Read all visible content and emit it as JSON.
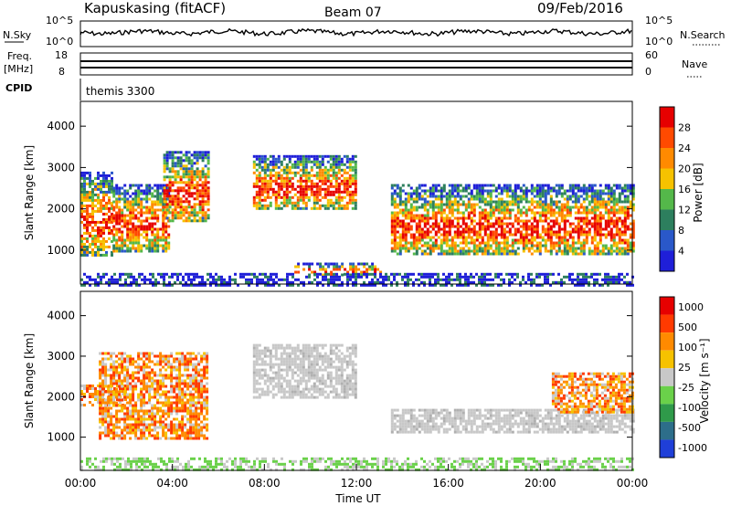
{
  "header": {
    "station": "Kapuskasing (fitACF)",
    "beam": "Beam 07",
    "date": "09/Feb/2016"
  },
  "noise_panel": {
    "left_label": "N.Sky",
    "right_label": "N.Search",
    "left_ticks": [
      "10^5",
      "10^0"
    ],
    "right_ticks": [
      "10^5",
      "10^0"
    ]
  },
  "freq_panel": {
    "left_label_1": "Freq.",
    "left_label_2": "[MHz]",
    "right_label": "Nave",
    "left_ticks": [
      "18",
      "8"
    ],
    "right_ticks": [
      "60",
      "0"
    ]
  },
  "cpid": {
    "label": "CPID",
    "program": "themis 3300"
  },
  "xaxis": {
    "title": "Time UT",
    "ticks": [
      "00:00",
      "04:00",
      "08:00",
      "12:00",
      "16:00",
      "20:00",
      "00:00"
    ]
  },
  "chart_data": [
    {
      "type": "heatmap",
      "panel": "power",
      "ylabel": "Slant Range [km]",
      "xlabel": "Time UT",
      "ylim": [
        180,
        4600
      ],
      "yticks": [
        1000,
        2000,
        3000,
        4000
      ],
      "colorbar_label": "Power [dB]",
      "colorbar_ticks": [
        4,
        8,
        12,
        16,
        20,
        24,
        28
      ],
      "colors": [
        "#1f1fd8",
        "#2a58c9",
        "#2d7f5e",
        "#54b84a",
        "#f6c200",
        "#ff8a00",
        "#ff4a00",
        "#e60000"
      ],
      "echo_regions": [
        {
          "t_start": 0.0,
          "t_end": 1.4,
          "r_min": 900,
          "r_max": 2900
        },
        {
          "t_start": 1.4,
          "t_end": 3.8,
          "r_min": 1000,
          "r_max": 2600
        },
        {
          "t_start": 3.6,
          "t_end": 5.6,
          "r_min": 1700,
          "r_max": 3400
        },
        {
          "t_start": 7.5,
          "t_end": 12.0,
          "r_min": 2000,
          "r_max": 3300
        },
        {
          "t_start": 9.3,
          "t_end": 13.0,
          "r_min": 400,
          "r_max": 700
        },
        {
          "t_start": 13.5,
          "t_end": 24.0,
          "r_min": 900,
          "r_max": 2600
        },
        {
          "t_start": 0.0,
          "t_end": 24.0,
          "r_min": 180,
          "r_max": 450
        }
      ]
    },
    {
      "type": "heatmap",
      "panel": "velocity",
      "ylabel": "Slant Range [km]",
      "xlabel": "Time UT",
      "ylim": [
        180,
        4600
      ],
      "yticks": [
        1000,
        2000,
        3000,
        4000
      ],
      "colorbar_label": "Velocity [m s⁻¹]",
      "colorbar_ticks": [
        1000,
        500,
        100,
        25,
        -25,
        -100,
        -500,
        -1000
      ],
      "colors": [
        "#1f3fd8",
        "#2d6e8a",
        "#2f9a4a",
        "#6ad14a",
        "#c8c8c8",
        "#f6c200",
        "#ff8a00",
        "#ff3a00",
        "#e60000"
      ],
      "echo_regions": [
        {
          "t_start": 0.0,
          "t_end": 2.0,
          "r_min": 1800,
          "r_max": 2300
        },
        {
          "t_start": 0.8,
          "t_end": 5.5,
          "r_min": 1000,
          "r_max": 3100
        },
        {
          "t_start": 7.5,
          "t_end": 12.0,
          "r_min": 2000,
          "r_max": 3300
        },
        {
          "t_start": 13.5,
          "t_end": 24.0,
          "r_min": 1100,
          "r_max": 1700
        },
        {
          "t_start": 20.5,
          "t_end": 24.0,
          "r_min": 1600,
          "r_max": 2600
        },
        {
          "t_start": 0.0,
          "t_end": 24.0,
          "r_min": 180,
          "r_max": 500
        }
      ]
    }
  ]
}
